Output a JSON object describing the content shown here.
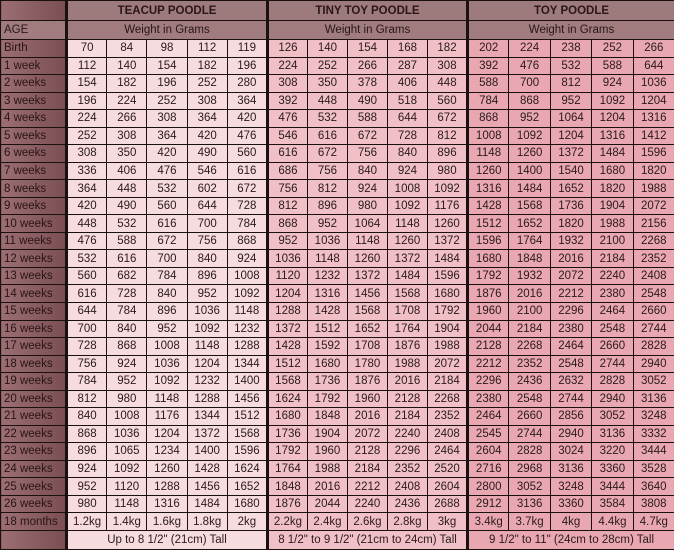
{
  "header": {
    "age_label": "AGE",
    "groups": [
      {
        "title": "TEACUP POODLE",
        "subtitle": "Weight in Grams"
      },
      {
        "title": "TINY TOY POODLE",
        "subtitle": "Weight in Grams"
      },
      {
        "title": "TOY POODLE",
        "subtitle": "Weight in Grams"
      }
    ]
  },
  "colors": {
    "age_column": "#8a5e62",
    "header": "#9d7a7c",
    "teacup": "#f7dcdf",
    "tiny_toy": "#f0c0c6",
    "toy": "#e9a7b2"
  },
  "rows": [
    {
      "age": "Birth",
      "teacup": [
        "70",
        "84",
        "98",
        "112",
        "119"
      ],
      "tiny": [
        "126",
        "140",
        "154",
        "168",
        "182"
      ],
      "toy": [
        "202",
        "224",
        "238",
        "252",
        "266"
      ]
    },
    {
      "age": "1 week",
      "teacup": [
        "112",
        "140",
        "154",
        "182",
        "196"
      ],
      "tiny": [
        "224",
        "252",
        "266",
        "287",
        "308"
      ],
      "toy": [
        "392",
        "476",
        "532",
        "588",
        "644"
      ]
    },
    {
      "age": "2 weeks",
      "teacup": [
        "154",
        "182",
        "196",
        "252",
        "280"
      ],
      "tiny": [
        "308",
        "350",
        "378",
        "406",
        "448"
      ],
      "toy": [
        "588",
        "700",
        "812",
        "924",
        "1036"
      ]
    },
    {
      "age": "3 weeks",
      "teacup": [
        "196",
        "224",
        "252",
        "308",
        "364"
      ],
      "tiny": [
        "392",
        "448",
        "490",
        "518",
        "560"
      ],
      "toy": [
        "784",
        "868",
        "952",
        "1092",
        "1204"
      ]
    },
    {
      "age": "4 weeks",
      "teacup": [
        "224",
        "266",
        "308",
        "364",
        "420"
      ],
      "tiny": [
        "476",
        "532",
        "588",
        "644",
        "672"
      ],
      "toy": [
        "868",
        "952",
        "1064",
        "1204",
        "1316"
      ]
    },
    {
      "age": "5 weeks",
      "teacup": [
        "252",
        "308",
        "364",
        "420",
        "476"
      ],
      "tiny": [
        "546",
        "616",
        "672",
        "728",
        "812"
      ],
      "toy": [
        "1008",
        "1092",
        "1204",
        "1316",
        "1412"
      ]
    },
    {
      "age": "6 weeks",
      "teacup": [
        "308",
        "350",
        "420",
        "490",
        "560"
      ],
      "tiny": [
        "616",
        "672",
        "756",
        "840",
        "896"
      ],
      "toy": [
        "1148",
        "1260",
        "1372",
        "1484",
        "1596"
      ]
    },
    {
      "age": "7 weeks",
      "teacup": [
        "336",
        "406",
        "476",
        "546",
        "616"
      ],
      "tiny": [
        "686",
        "756",
        "840",
        "924",
        "980"
      ],
      "toy": [
        "1260",
        "1400",
        "1540",
        "1680",
        "1820"
      ]
    },
    {
      "age": "8 weeks",
      "teacup": [
        "364",
        "448",
        "532",
        "602",
        "672"
      ],
      "tiny": [
        "756",
        "812",
        "924",
        "1008",
        "1092"
      ],
      "toy": [
        "1316",
        "1484",
        "1652",
        "1820",
        "1988"
      ]
    },
    {
      "age": "9 weeks",
      "teacup": [
        "420",
        "490",
        "560",
        "644",
        "728"
      ],
      "tiny": [
        "812",
        "896",
        "980",
        "1092",
        "1176"
      ],
      "toy": [
        "1428",
        "1568",
        "1736",
        "1904",
        "2072"
      ]
    },
    {
      "age": "10 weeks",
      "teacup": [
        "448",
        "532",
        "616",
        "700",
        "784"
      ],
      "tiny": [
        "868",
        "952",
        "1064",
        "1148",
        "1260"
      ],
      "toy": [
        "1512",
        "1652",
        "1820",
        "1988",
        "2156"
      ]
    },
    {
      "age": "11 weeks",
      "teacup": [
        "476",
        "588",
        "672",
        "756",
        "868"
      ],
      "tiny": [
        "952",
        "1036",
        "1148",
        "1260",
        "1372"
      ],
      "toy": [
        "1596",
        "1764",
        "1932",
        "2100",
        "2268"
      ]
    },
    {
      "age": "12 weeks",
      "teacup": [
        "532",
        "616",
        "700",
        "840",
        "924"
      ],
      "tiny": [
        "1036",
        "1148",
        "1260",
        "1372",
        "1484"
      ],
      "toy": [
        "1680",
        "1848",
        "2016",
        "2184",
        "2352"
      ]
    },
    {
      "age": "13 weeks",
      "teacup": [
        "560",
        "682",
        "784",
        "896",
        "1008"
      ],
      "tiny": [
        "1120",
        "1232",
        "1372",
        "1484",
        "1596"
      ],
      "toy": [
        "1792",
        "1932",
        "2072",
        "2240",
        "2408"
      ]
    },
    {
      "age": "14 weeks",
      "teacup": [
        "616",
        "728",
        "840",
        "952",
        "1092"
      ],
      "tiny": [
        "1204",
        "1316",
        "1456",
        "1568",
        "1680"
      ],
      "toy": [
        "1876",
        "2016",
        "2212",
        "2380",
        "2548"
      ]
    },
    {
      "age": "15 weeks",
      "teacup": [
        "644",
        "784",
        "896",
        "1036",
        "1148"
      ],
      "tiny": [
        "1288",
        "1428",
        "1568",
        "1708",
        "1792"
      ],
      "toy": [
        "1960",
        "2100",
        "2296",
        "2464",
        "2660"
      ]
    },
    {
      "age": "16 weeks",
      "teacup": [
        "700",
        "840",
        "952",
        "1092",
        "1232"
      ],
      "tiny": [
        "1372",
        "1512",
        "1652",
        "1764",
        "1904"
      ],
      "toy": [
        "2044",
        "2184",
        "2380",
        "2548",
        "2744"
      ]
    },
    {
      "age": "17 weeks",
      "teacup": [
        "728",
        "868",
        "1008",
        "1148",
        "1288"
      ],
      "tiny": [
        "1428",
        "1592",
        "1708",
        "1876",
        "1988"
      ],
      "toy": [
        "2128",
        "2268",
        "2464",
        "2660",
        "2828"
      ]
    },
    {
      "age": "18 weeks",
      "teacup": [
        "756",
        "924",
        "1036",
        "1204",
        "1344"
      ],
      "tiny": [
        "1512",
        "1680",
        "1780",
        "1988",
        "2072"
      ],
      "toy": [
        "2212",
        "2352",
        "2548",
        "2744",
        "2940"
      ]
    },
    {
      "age": "19 weeks",
      "teacup": [
        "784",
        "952",
        "1092",
        "1232",
        "1400"
      ],
      "tiny": [
        "1568",
        "1736",
        "1876",
        "2016",
        "2184"
      ],
      "toy": [
        "2296",
        "2436",
        "2632",
        "2828",
        "3052"
      ]
    },
    {
      "age": "20 weeks",
      "teacup": [
        "812",
        "980",
        "1148",
        "1288",
        "1456"
      ],
      "tiny": [
        "1624",
        "1792",
        "1960",
        "2128",
        "2268"
      ],
      "toy": [
        "2380",
        "2548",
        "2744",
        "2940",
        "3136"
      ]
    },
    {
      "age": "21 weeks",
      "teacup": [
        "840",
        "1008",
        "1176",
        "1344",
        "1512"
      ],
      "tiny": [
        "1680",
        "1848",
        "2016",
        "2184",
        "2352"
      ],
      "toy": [
        "2464",
        "2660",
        "2856",
        "3052",
        "3248"
      ]
    },
    {
      "age": "22 weeks",
      "teacup": [
        "868",
        "1036",
        "1204",
        "1372",
        "1568"
      ],
      "tiny": [
        "1736",
        "1904",
        "2072",
        "2240",
        "2408"
      ],
      "toy": [
        "2545",
        "2744",
        "2940",
        "3136",
        "3332"
      ]
    },
    {
      "age": "23 weeks",
      "teacup": [
        "896",
        "1065",
        "1234",
        "1400",
        "1596"
      ],
      "tiny": [
        "1792",
        "1960",
        "2128",
        "2296",
        "2464"
      ],
      "toy": [
        "2604",
        "2828",
        "3024",
        "3220",
        "3444"
      ]
    },
    {
      "age": "24 weeks",
      "teacup": [
        "924",
        "1092",
        "1260",
        "1428",
        "1624"
      ],
      "tiny": [
        "1764",
        "1988",
        "2184",
        "2352",
        "2520"
      ],
      "toy": [
        "2716",
        "2968",
        "3136",
        "3360",
        "3528"
      ]
    },
    {
      "age": "25 weeks",
      "teacup": [
        "952",
        "1120",
        "1288",
        "1456",
        "1652"
      ],
      "tiny": [
        "1848",
        "2016",
        "2212",
        "2408",
        "2604"
      ],
      "toy": [
        "2800",
        "3052",
        "3248",
        "3444",
        "3640"
      ]
    },
    {
      "age": "26 weeks",
      "teacup": [
        "980",
        "1148",
        "1316",
        "1484",
        "1680"
      ],
      "tiny": [
        "1876",
        "2044",
        "2240",
        "2436",
        "2688"
      ],
      "toy": [
        "2912",
        "3136",
        "3360",
        "3584",
        "3808"
      ]
    },
    {
      "age": "18 months",
      "teacup": [
        "1.2kg",
        "1.4kg",
        "1.6kg",
        "1.8kg",
        "2kg"
      ],
      "tiny": [
        "2.2kg",
        "2.4kg",
        "2.6kg",
        "2.8kg",
        "3kg"
      ],
      "toy": [
        "3.4kg",
        "3.7kg",
        "4kg",
        "4.4kg",
        "4.7kg"
      ]
    }
  ],
  "footer": {
    "teacup_height": "Up to 8 1/2\" (21cm) Tall",
    "tiny_height": "8 1/2\" to 9 1/2\" (21cm to 24cm) Tall",
    "toy_height": "9 1/2\" to 11\" (24cm to 28cm) Tall"
  }
}
